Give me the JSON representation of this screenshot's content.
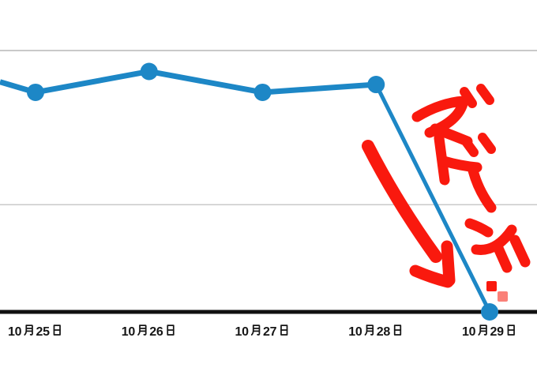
{
  "chart_data": {
    "type": "line",
    "title": "",
    "categories": [
      "10月25日",
      "10月26日",
      "10月27日",
      "10月28日",
      "10月29日"
    ],
    "values": [
      84,
      92,
      84,
      87,
      0
    ],
    "value_scale_note": "no y-axis labels visible; values are percent of distance from the x-axis (0) up to the top gridline (100)",
    "line_enters_left_edge_value": 88,
    "gridlines_relative": [
      41,
      100
    ],
    "xlabel": "",
    "ylabel": "",
    "legend": "none",
    "annotations": [
      {
        "type": "text",
        "text": "ズドーン!!",
        "color": "#f9190e",
        "style": "hand-drawn red katakana written vertically beside the falling line segment"
      },
      {
        "type": "arrow",
        "color": "#f9190e",
        "direction": "down-right, pointing toward the 10月29日 data point at the axis"
      }
    ]
  },
  "colors": {
    "line": "#1d87c6",
    "point": "#1d87c6",
    "annotation_red": "#f9190e",
    "annotation_red_light": "#fa8078",
    "gridline": "#c9c9c9",
    "axis": "#111111",
    "label": "#161616",
    "background": "#ffffff"
  }
}
